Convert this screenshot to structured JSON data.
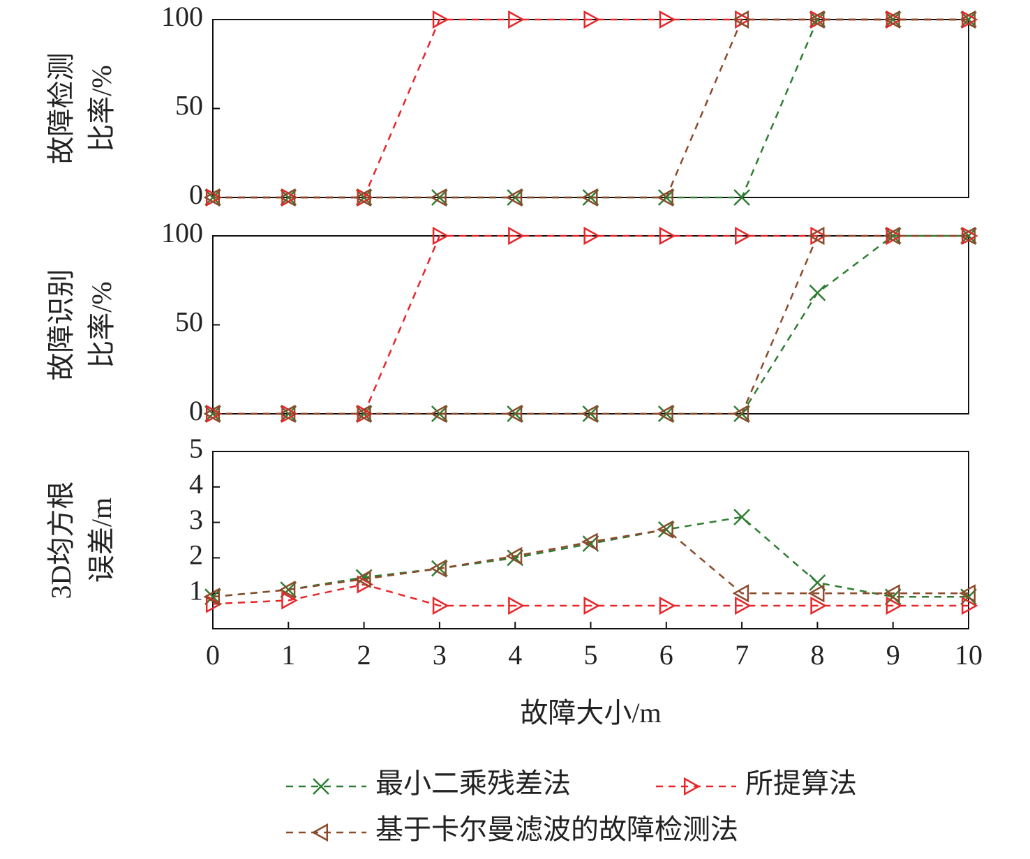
{
  "chart_data": [
    {
      "type": "line",
      "ylabel": [
        "故障检测",
        "比率/%"
      ],
      "xlim": [
        0,
        10
      ],
      "ylim": [
        0,
        100
      ],
      "yticks": [
        0,
        50,
        100
      ],
      "x": [
        0,
        1,
        2,
        3,
        4,
        5,
        6,
        7,
        8,
        9,
        10
      ],
      "series": [
        {
          "color": "#2e7d32",
          "marker": "x",
          "values": [
            0,
            0,
            0,
            0,
            0,
            0,
            0,
            0,
            100,
            100,
            100
          ]
        },
        {
          "color": "#e8262a",
          "marker": "triangle-right",
          "values": [
            0,
            0,
            0,
            100,
            100,
            100,
            100,
            100,
            100,
            100,
            100
          ]
        },
        {
          "color": "#8b4a2b",
          "marker": "triangle-left",
          "values": [
            0,
            0,
            0,
            0,
            0,
            0,
            0,
            100,
            100,
            100,
            100
          ]
        }
      ]
    },
    {
      "type": "line",
      "ylabel": [
        "故障识别",
        "比率/%"
      ],
      "xlim": [
        0,
        10
      ],
      "ylim": [
        0,
        100
      ],
      "yticks": [
        0,
        50,
        100
      ],
      "x": [
        0,
        1,
        2,
        3,
        4,
        5,
        6,
        7,
        8,
        9,
        10
      ],
      "series": [
        {
          "color": "#2e7d32",
          "marker": "x",
          "values": [
            0,
            0,
            0,
            0,
            0,
            0,
            0,
            0,
            68,
            100,
            100
          ]
        },
        {
          "color": "#e8262a",
          "marker": "triangle-right",
          "values": [
            0,
            0,
            0,
            100,
            100,
            100,
            100,
            100,
            100,
            100,
            100
          ]
        },
        {
          "color": "#8b4a2b",
          "marker": "triangle-left",
          "values": [
            0,
            0,
            0,
            0,
            0,
            0,
            0,
            0,
            100,
            100,
            100
          ]
        }
      ]
    },
    {
      "type": "line",
      "ylabel": [
        "3D均方根",
        "误差/m"
      ],
      "xlabel": "故障大小/m",
      "xlim": [
        0,
        10
      ],
      "xticks": [
        0,
        1,
        2,
        3,
        4,
        5,
        6,
        7,
        8,
        9,
        10
      ],
      "ylim": [
        0,
        5
      ],
      "yticks": [
        1,
        2,
        3,
        4,
        5
      ],
      "legend": "bottom",
      "x": [
        0,
        1,
        2,
        3,
        4,
        5,
        6,
        7,
        8,
        9,
        10
      ],
      "series": [
        {
          "name": "最小二乘残差法",
          "color": "#2e7d32",
          "marker": "x",
          "values": [
            0.9,
            1.1,
            1.45,
            1.7,
            2.0,
            2.4,
            2.8,
            3.15,
            1.3,
            0.9,
            0.9
          ]
        },
        {
          "name": "所提算法",
          "color": "#e8262a",
          "marker": "triangle-right",
          "values": [
            0.7,
            0.8,
            1.25,
            0.65,
            0.65,
            0.65,
            0.65,
            0.65,
            0.65,
            0.65,
            0.65
          ]
        },
        {
          "name": "基于卡尔曼滤波的故障检测法",
          "color": "#8b4a2b",
          "marker": "triangle-left",
          "values": [
            0.9,
            1.1,
            1.4,
            1.7,
            2.05,
            2.45,
            2.8,
            1.0,
            1.0,
            1.0,
            1.0
          ]
        }
      ]
    }
  ]
}
